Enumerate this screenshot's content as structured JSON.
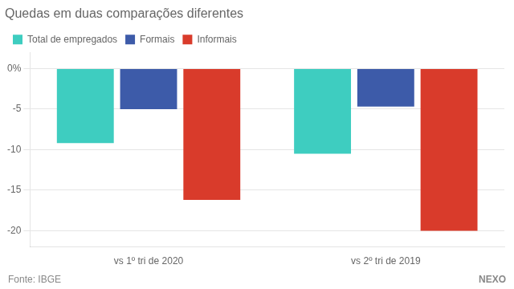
{
  "chart_data": {
    "type": "bar",
    "title": "Quedas em duas comparações diferentes",
    "categories": [
      "vs 1º tri de 2020",
      "vs 2º tri de 2019"
    ],
    "series": [
      {
        "name": "Total de empregados",
        "color": "#3ECDC0",
        "values": [
          -9.2,
          -10.5
        ]
      },
      {
        "name": "Formais",
        "color": "#3D5BA9",
        "values": [
          -5.0,
          -4.7
        ]
      },
      {
        "name": "Informais",
        "color": "#D93B2B",
        "values": [
          -16.2,
          -20.0
        ]
      }
    ],
    "ylim": [
      -22,
      2.0
    ],
    "yticks": [
      {
        "value": 0,
        "label": "0%"
      },
      -5,
      -10,
      -15,
      -20
    ],
    "grid": true,
    "legend": "top",
    "annotations": [
      "Fonte: IBGE",
      "NEXO"
    ]
  }
}
